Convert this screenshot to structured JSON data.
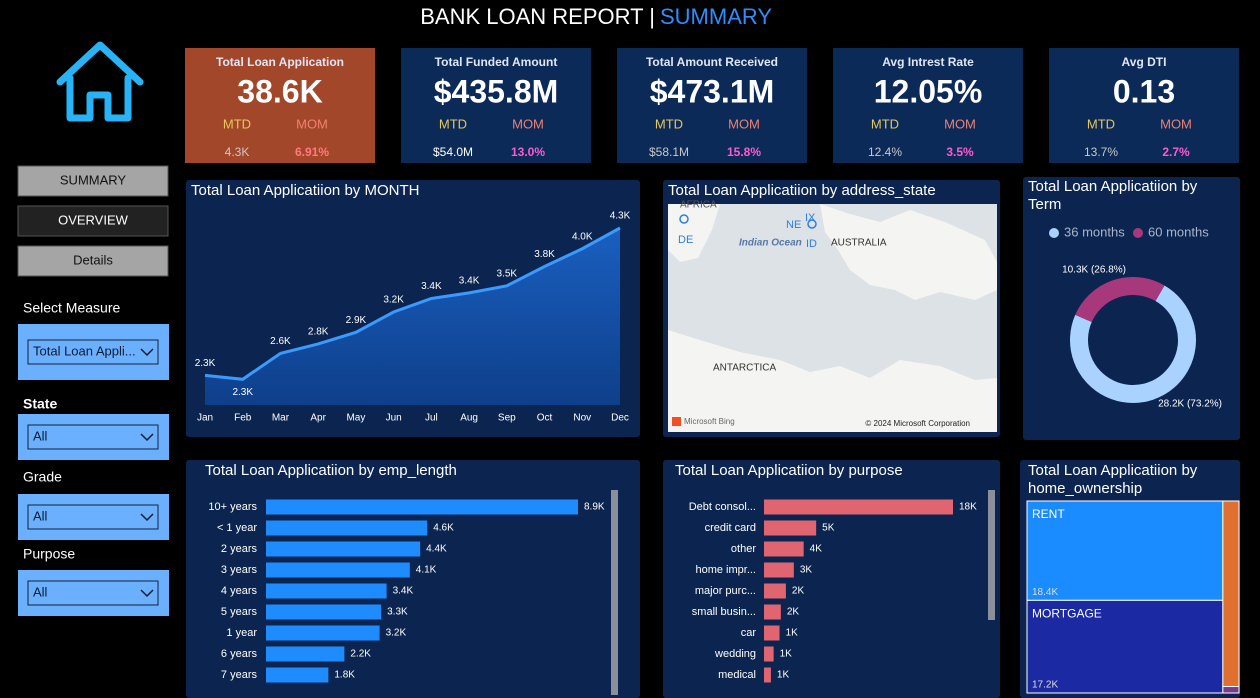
{
  "header": {
    "title": "BANK LOAN REPORT |",
    "page": "SUMMARY"
  },
  "kpis": [
    {
      "title": "Total Loan Application",
      "value": "38.6K",
      "mtd_label": "MTD",
      "mom_label": "MOM",
      "mtd": "4.3K",
      "mom": "6.91%"
    },
    {
      "title": "Total Funded Amount",
      "value": "$435.8M",
      "mtd_label": "MTD",
      "mom_label": "MOM",
      "mtd": "$54.0M",
      "mom": "13.0%"
    },
    {
      "title": "Total Amount Received",
      "value": "$473.1M",
      "mtd_label": "MTD",
      "mom_label": "MOM",
      "mtd": "$58.1M",
      "mom": "15.8%"
    },
    {
      "title": "Avg Intrest Rate",
      "value": "12.05%",
      "mtd_label": "MTD",
      "mom_label": "MOM",
      "mtd": "12.4%",
      "mom": "3.5%"
    },
    {
      "title": "Avg DTI",
      "value": "0.13",
      "mtd_label": "MTD",
      "mom_label": "MOM",
      "mtd": "13.7%",
      "mom": "2.7%"
    }
  ],
  "nav": [
    "SUMMARY",
    "OVERVIEW",
    "Details"
  ],
  "filters": [
    {
      "label": "Select Measure",
      "value": "Total Loan Appli..."
    },
    {
      "label": "State",
      "value": "All"
    },
    {
      "label": "Grade",
      "value": "All"
    },
    {
      "label": "Purpose",
      "value": "All"
    }
  ],
  "map": {
    "title": "Total Loan Applicatiion by address_state",
    "labels": [
      "AFRICA",
      "DE",
      "NE",
      "IX",
      "Indian Ocean",
      "ID",
      "AUSTRALIA",
      "ANTARCTICA"
    ],
    "provider": "Microsoft Bing",
    "copyright": "© 2024 Microsoft Corporation"
  },
  "chart_data": [
    {
      "type": "area",
      "title": "Total Loan Applicatiion by MONTH",
      "color": "#3a9bff",
      "categories": [
        "Jan",
        "Feb",
        "Mar",
        "Apr",
        "May",
        "Jun",
        "Jul",
        "Aug",
        "Sep",
        "Oct",
        "Nov",
        "Dec"
      ],
      "values": [
        2332,
        2279,
        2627,
        2755,
        2911,
        3184,
        3366,
        3441,
        3536,
        3796,
        4035,
        4314
      ],
      "value_labels": [
        "2.3K",
        "2.3K",
        "2.6K",
        "2.8K",
        "2.9K",
        "3.2K",
        "3.4K",
        "3.4K",
        "3.5K",
        "3.8K",
        "4.0K",
        "4.3K"
      ]
    },
    {
      "type": "donut",
      "title": "Total Loan Applicatiion by Term",
      "categories": [
        "36 months",
        "60 months"
      ],
      "values": [
        28237,
        10339
      ],
      "value_labels": [
        "28.2K (73.2%)",
        "10.3K (26.8%)"
      ],
      "colors": [
        "#a9d2ff",
        "#a8387c"
      ],
      "legend": "top"
    },
    {
      "type": "hbar",
      "title": "Total Loan Applicatiion by emp_length",
      "color": "#1e8cff",
      "categories": [
        "10+ years",
        "< 1 year",
        "2 years",
        "3 years",
        "4 years",
        "5 years",
        "1 year",
        "6 years",
        "7 years"
      ],
      "values": [
        8870,
        4583,
        4382,
        4088,
        3428,
        3273,
        3229,
        2228,
        1773
      ],
      "value_labels": [
        "8.9K",
        "4.6K",
        "4.4K",
        "4.1K",
        "3.4K",
        "3.3K",
        "3.2K",
        "2.2K",
        "1.8K"
      ]
    },
    {
      "type": "hbar",
      "title": "Total Loan Applicatiion by purpose",
      "color": "#e06570",
      "categories": [
        "Debt consol...",
        "credit card",
        "other",
        "home impr...",
        "major purc...",
        "small busin...",
        "car",
        "wedding",
        "medical"
      ],
      "values": [
        18214,
        5027,
        3824,
        2876,
        2110,
        1625,
        1497,
        928,
        667
      ],
      "value_labels": [
        "18K",
        "5K",
        "4K",
        "3K",
        "2K",
        "2K",
        "1K",
        "1K",
        "1K"
      ]
    },
    {
      "type": "treemap",
      "title": "Total Loan Applicatiion by home_ownership",
      "categories": [
        "RENT",
        "MORTGAGE",
        null,
        null
      ],
      "values": [
        18439,
        17198,
        2838,
        99
      ],
      "value_labels": [
        "18.4K",
        "17.2K",
        null,
        null
      ],
      "colors": [
        "#1a8cff",
        "#1b2aa2",
        "#e07030",
        "#7a3a8a"
      ]
    }
  ]
}
